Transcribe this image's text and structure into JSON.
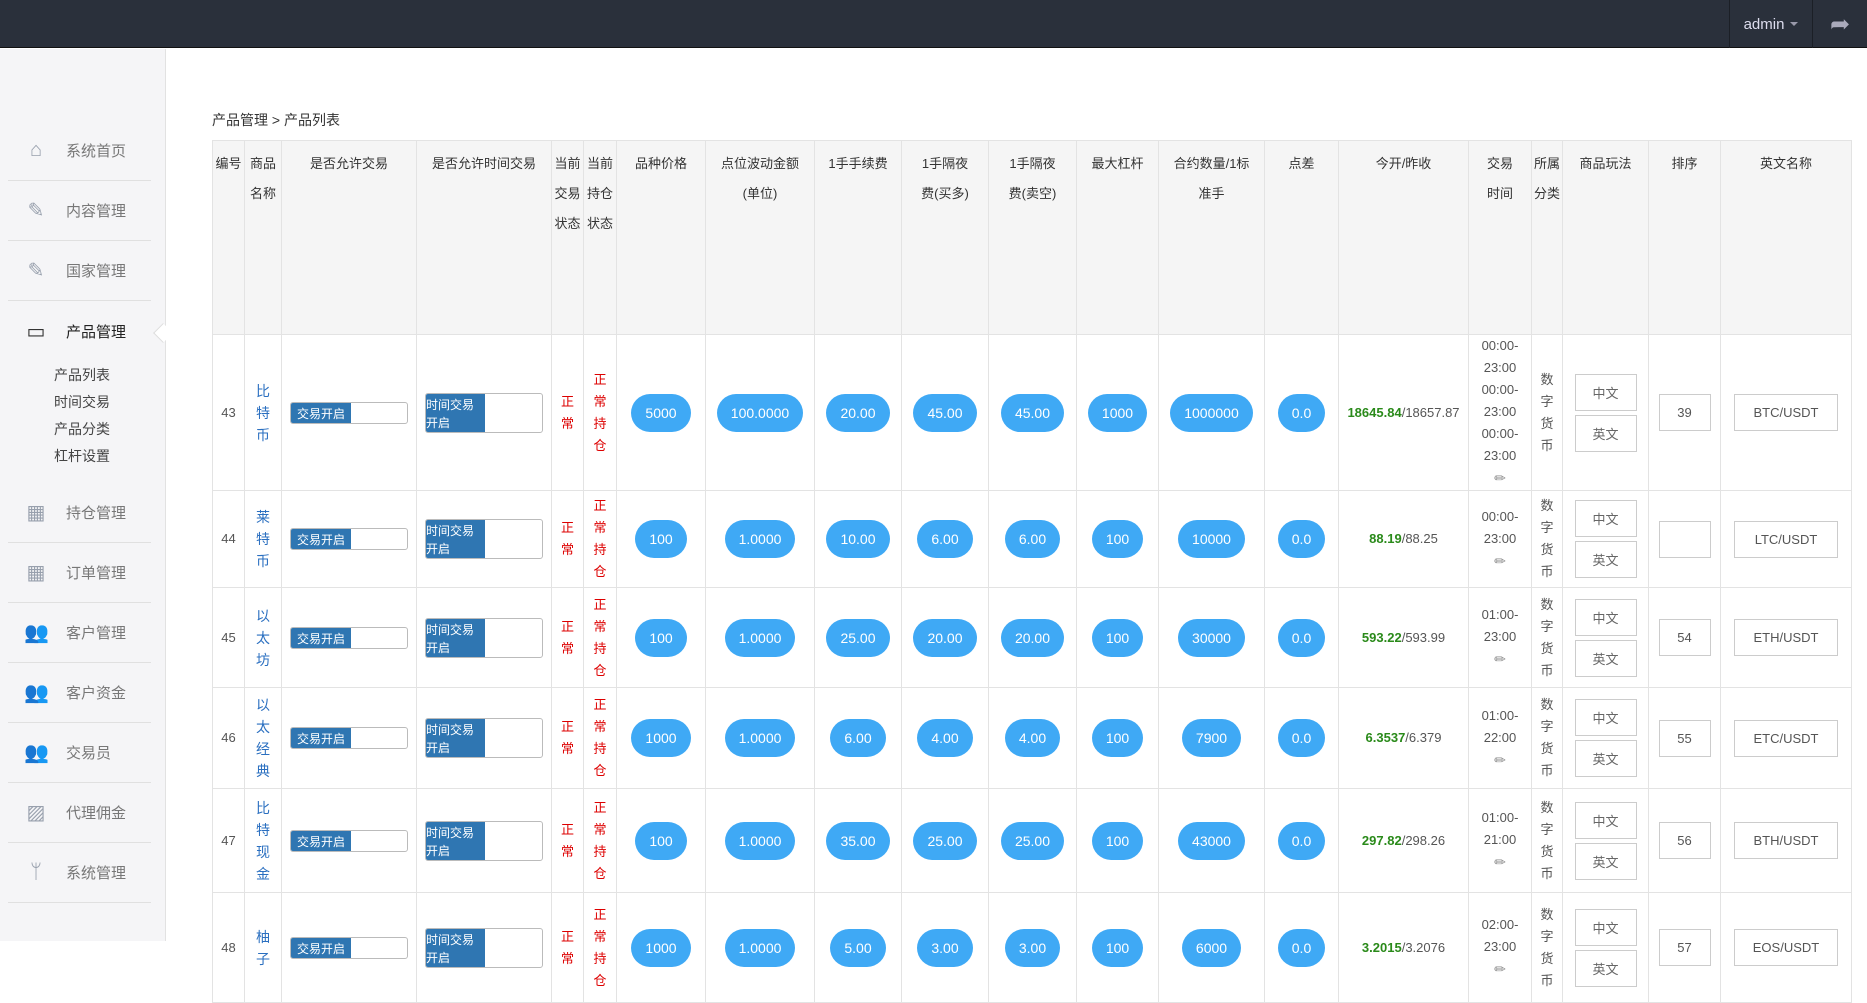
{
  "topbar": {
    "user": "admin"
  },
  "breadcrumb": "产品管理 > 产品列表",
  "sidebar": {
    "items": [
      {
        "label": "系统首页",
        "icon": "home-icon"
      },
      {
        "label": "内容管理",
        "icon": "edit-icon"
      },
      {
        "label": "国家管理",
        "icon": "edit-icon"
      },
      {
        "label": "产品管理",
        "icon": "calendar-icon",
        "active": true
      },
      {
        "label": "持仓管理",
        "icon": "grid-icon"
      },
      {
        "label": "订单管理",
        "icon": "grid-icon"
      },
      {
        "label": "客户管理",
        "icon": "users-icon"
      },
      {
        "label": "客户资金",
        "icon": "users-icon"
      },
      {
        "label": "交易员",
        "icon": "users-icon"
      },
      {
        "label": "代理佣金",
        "icon": "image-icon"
      },
      {
        "label": "系统管理",
        "icon": "branch-icon"
      }
    ],
    "sub_items": [
      "产品列表",
      "时间交易",
      "产品分类",
      "杠杆设置"
    ]
  },
  "table": {
    "headers": [
      "编号",
      "商品名称",
      "是否允许交易",
      "是否允许时间交易",
      "当前交易状态",
      "当前持仓状态",
      "品种价格",
      "点位波动金额(单位)",
      "1手手续费",
      "1手隔夜费(买多)",
      "1手隔夜费(卖空)",
      "最大杠杆",
      "合约数量/1标准手",
      "点差",
      "今开/昨收",
      "交易时间",
      "所属分类",
      "商品玩法",
      "排序",
      "英文名称"
    ],
    "trade_label": "交易开启",
    "time_trade_label": "时间交易开启",
    "trade_status": "正常",
    "position_status": "正常持仓",
    "btn_cn": "中文",
    "btn_en": "英文",
    "rows": [
      {
        "id": "43",
        "name": "比特币",
        "price": "5000",
        "tick": "100.0000",
        "fee": "20.00",
        "swap_long": "45.00",
        "swap_short": "45.00",
        "leverage": "1000",
        "contract": "1000000",
        "spread": "0.0",
        "open": "18645.84",
        "close": "18657.87",
        "time": "00:00-23:00 00:00-23:00 00:00-23:00",
        "category": "数字货币",
        "sort": "39",
        "en": "BTC/USDT"
      },
      {
        "id": "44",
        "name": "莱特币",
        "price": "100",
        "tick": "1.0000",
        "fee": "10.00",
        "swap_long": "6.00",
        "swap_short": "6.00",
        "leverage": "100",
        "contract": "10000",
        "spread": "0.0",
        "open": "88.19",
        "close": "88.25",
        "time": "00:00-23:00",
        "category": "数字货币",
        "sort": "",
        "en": "LTC/USDT"
      },
      {
        "id": "45",
        "name": "以太坊",
        "price": "100",
        "tick": "1.0000",
        "fee": "25.00",
        "swap_long": "20.00",
        "swap_short": "20.00",
        "leverage": "100",
        "contract": "30000",
        "spread": "0.0",
        "open": "593.22",
        "close": "593.99",
        "time": "01:00-23:00",
        "category": "数字货币",
        "sort": "54",
        "en": "ETH/USDT"
      },
      {
        "id": "46",
        "name": "以太经典",
        "price": "1000",
        "tick": "1.0000",
        "fee": "6.00",
        "swap_long": "4.00",
        "swap_short": "4.00",
        "leverage": "100",
        "contract": "7900",
        "spread": "0.0",
        "open": "6.3537",
        "close": "6.379",
        "time": "01:00-22:00",
        "category": "数字货币",
        "sort": "55",
        "en": "ETC/USDT"
      },
      {
        "id": "47",
        "name": "比特现金",
        "price": "100",
        "tick": "1.0000",
        "fee": "35.00",
        "swap_long": "25.00",
        "swap_short": "25.00",
        "leverage": "100",
        "contract": "43000",
        "spread": "0.0",
        "open": "297.82",
        "close": "298.26",
        "time": "01:00-21:00",
        "category": "数字货币",
        "sort": "56",
        "en": "BTH/USDT"
      },
      {
        "id": "48",
        "name": "柚子",
        "price": "1000",
        "tick": "1.0000",
        "fee": "5.00",
        "swap_long": "3.00",
        "swap_short": "3.00",
        "leverage": "100",
        "contract": "6000",
        "spread": "0.0",
        "open": "3.2015",
        "close": "3.2076",
        "time": "02:00-23:00",
        "category": "数字货币",
        "sort": "57",
        "en": "EOS/USDT"
      }
    ]
  }
}
